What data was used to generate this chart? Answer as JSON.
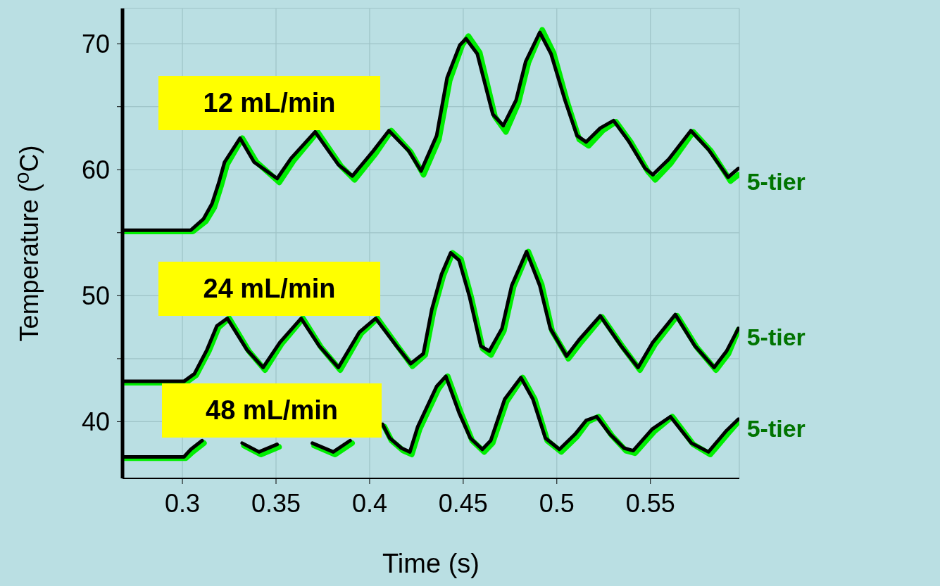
{
  "chart_data": {
    "type": "line",
    "xlabel": "Time (s)",
    "ylabel": "Temperature ($^{o}$C)",
    "xlim": [
      0.268,
      0.5975
    ],
    "xticks": [
      0.3,
      0.35,
      0.4,
      0.45,
      0.5,
      0.55
    ],
    "ylim": [
      35.5,
      72.8
    ],
    "yticks": [
      40,
      {
        "value": 45,
        "label": null
      },
      50,
      {
        "value": 55,
        "label": null
      },
      60,
      {
        "value": 65,
        "label": null
      },
      70
    ],
    "grid": true,
    "legend": false,
    "marker": "none",
    "line_style": "solid",
    "annotations": [
      "12 mL/min",
      "24 mL/min",
      "48 mL/min"
    ],
    "series": [
      {
        "name": "5-tier",
        "color": "#00ee00",
        "x": [
          0.268,
          0.3055,
          0.3125,
          0.317,
          0.3208,
          0.3238,
          0.332,
          0.3396,
          0.3518,
          0.3593,
          0.3722,
          0.3846,
          0.392,
          0.4033,
          0.4116,
          0.422,
          0.4288,
          0.437,
          0.4428,
          0.4495,
          0.4528,
          0.4588,
          0.467,
          0.4728,
          0.4795,
          0.4848,
          0.4922,
          0.4982,
          0.5057,
          0.512,
          0.517,
          0.5245,
          0.5316,
          0.5395,
          0.5485,
          0.5526,
          0.5609,
          0.5729,
          0.5823,
          0.5928,
          0.597
        ],
        "values": [
          55.1,
          55.1,
          55.9,
          57.0,
          58.8,
          60.4,
          62.5,
          60.6,
          59.0,
          60.7,
          63.0,
          60.3,
          59.2,
          61.3,
          63.1,
          61.4,
          59.6,
          62.4,
          67.1,
          69.9,
          70.6,
          69.3,
          64.2,
          63.0,
          65.3,
          68.5,
          71.1,
          69.3,
          65.3,
          62.4,
          61.9,
          63.1,
          63.8,
          62.2,
          59.9,
          59.2,
          60.5,
          63.0,
          61.5,
          59.1,
          59.6
        ]
      },
      {
        "color": "#000000",
        "x": [
          0.268,
          0.3045,
          0.3113,
          0.3158,
          0.3195,
          0.3225,
          0.3308,
          0.3383,
          0.3506,
          0.358,
          0.3709,
          0.3833,
          0.3908,
          0.402,
          0.4103,
          0.4208,
          0.4275,
          0.4358,
          0.4414,
          0.4482,
          0.4515,
          0.4575,
          0.4658,
          0.4714,
          0.4782,
          0.4834,
          0.4909,
          0.4969,
          0.5044,
          0.5108,
          0.5157,
          0.5232,
          0.5303,
          0.5382,
          0.5472,
          0.5513,
          0.5596,
          0.5716,
          0.581,
          0.5915,
          0.597
        ],
        "values": [
          55.2,
          55.2,
          56.1,
          57.3,
          59.0,
          60.6,
          62.5,
          60.6,
          59.3,
          60.9,
          63.0,
          60.4,
          59.5,
          61.5,
          63.1,
          61.5,
          59.9,
          62.7,
          67.3,
          69.9,
          70.4,
          69.2,
          64.4,
          63.5,
          65.5,
          68.6,
          70.9,
          69.2,
          65.5,
          62.7,
          62.2,
          63.3,
          63.9,
          62.3,
          60.1,
          59.6,
          60.8,
          63.1,
          61.6,
          59.4,
          60.1
        ]
      },
      {
        "name": "5-tier",
        "color": "#00ee00",
        "x": [
          0.268,
          0.3018,
          0.3074,
          0.3141,
          0.3194,
          0.325,
          0.3355,
          0.3441,
          0.3531,
          0.3644,
          0.3741,
          0.3843,
          0.3955,
          0.4042,
          0.4154,
          0.4229,
          0.4297,
          0.4342,
          0.4394,
          0.4443,
          0.4488,
          0.4544,
          0.4604,
          0.4649,
          0.4717,
          0.4769,
          0.4848,
          0.4919,
          0.4975,
          0.5062,
          0.5129,
          0.5242,
          0.5354,
          0.5444,
          0.5523,
          0.5643,
          0.5748,
          0.585,
          0.5917,
          0.597
        ],
        "values": [
          43.1,
          43.1,
          43.7,
          45.6,
          47.5,
          48.2,
          45.6,
          44.1,
          46.2,
          48.2,
          45.9,
          44.1,
          47.0,
          48.2,
          45.9,
          44.4,
          45.3,
          48.8,
          51.6,
          53.4,
          52.9,
          49.8,
          45.8,
          45.3,
          47.2,
          50.7,
          53.5,
          50.9,
          47.2,
          45.0,
          46.3,
          48.3,
          45.9,
          44.1,
          46.1,
          48.4,
          45.9,
          44.1,
          45.4,
          47.3
        ]
      },
      {
        "color": "#000000",
        "x": [
          0.268,
          0.3008,
          0.3064,
          0.3131,
          0.3184,
          0.324,
          0.3345,
          0.3431,
          0.3521,
          0.3634,
          0.3731,
          0.3833,
          0.3945,
          0.4032,
          0.4144,
          0.4219,
          0.4287,
          0.4332,
          0.4384,
          0.4433,
          0.4478,
          0.4534,
          0.4594,
          0.4639,
          0.4707,
          0.4759,
          0.4838,
          0.4909,
          0.4965,
          0.5052,
          0.5119,
          0.5232,
          0.5344,
          0.5434,
          0.5513,
          0.5633,
          0.5738,
          0.584,
          0.5907,
          0.597
        ],
        "values": [
          43.2,
          43.2,
          43.8,
          45.7,
          47.6,
          48.2,
          45.7,
          44.3,
          46.3,
          48.2,
          46.0,
          44.3,
          47.1,
          48.2,
          46.0,
          44.6,
          45.4,
          48.9,
          51.7,
          53.4,
          52.8,
          49.9,
          46.0,
          45.6,
          47.4,
          50.8,
          53.5,
          50.8,
          47.4,
          45.2,
          46.5,
          48.4,
          46.0,
          44.3,
          46.3,
          48.5,
          46.0,
          44.3,
          45.6,
          47.4
        ]
      },
      {
        "name": "5-tier",
        "color": "#00ee00",
        "x": [
          0.268,
          0.3018,
          0.3055,
          0.3115,
          0.324,
          0.3329,
          0.3419,
          0.3516,
          0.364,
          0.3704,
          0.3816,
          0.3906,
          0.401,
          0.4079,
          0.4117,
          0.418,
          0.4225,
          0.4267,
          0.4368,
          0.4417,
          0.4488,
          0.4548,
          0.4612,
          0.4657,
          0.4732,
          0.4818,
          0.4882,
          0.4949,
          0.5024,
          0.5107,
          0.5167,
          0.5223,
          0.5294,
          0.5369,
          0.5418,
          0.5519,
          0.5617,
          0.5729,
          0.582,
          0.5917,
          0.597
        ],
        "values": [
          37.1,
          37.1,
          37.6,
          38.3,
          null,
          38.1,
          37.4,
          38.0,
          null,
          38.1,
          37.4,
          38.3,
          null,
          39.6,
          38.5,
          37.7,
          37.4,
          39.4,
          42.6,
          43.6,
          40.7,
          38.5,
          37.6,
          38.3,
          41.6,
          43.5,
          41.8,
          38.5,
          37.6,
          38.8,
          40.0,
          40.4,
          38.9,
          37.7,
          37.5,
          39.2,
          40.4,
          38.2,
          37.4,
          39.1,
          40.0
        ]
      },
      {
        "color": "#000000",
        "x": [
          0.268,
          0.3008,
          0.3045,
          0.3105,
          0.323,
          0.3319,
          0.3409,
          0.3506,
          0.363,
          0.3694,
          0.3806,
          0.3896,
          0.4,
          0.4069,
          0.4107,
          0.417,
          0.4215,
          0.4257,
          0.4358,
          0.4407,
          0.4478,
          0.4538,
          0.4602,
          0.4647,
          0.4722,
          0.4808,
          0.4872,
          0.4939,
          0.5014,
          0.5097,
          0.5157,
          0.5213,
          0.5284,
          0.5359,
          0.5408,
          0.5509,
          0.5607,
          0.5719,
          0.581,
          0.5907,
          0.597
        ],
        "values": [
          37.2,
          37.2,
          37.8,
          38.5,
          null,
          38.3,
          37.6,
          38.2,
          null,
          38.3,
          37.6,
          38.5,
          null,
          39.8,
          38.7,
          37.9,
          37.6,
          39.6,
          42.8,
          43.6,
          40.7,
          38.7,
          37.8,
          38.5,
          41.8,
          43.5,
          41.8,
          38.7,
          37.8,
          39.0,
          40.1,
          40.4,
          39.0,
          37.9,
          37.7,
          39.4,
          40.4,
          38.3,
          37.6,
          39.3,
          40.2
        ]
      }
    ]
  }
}
